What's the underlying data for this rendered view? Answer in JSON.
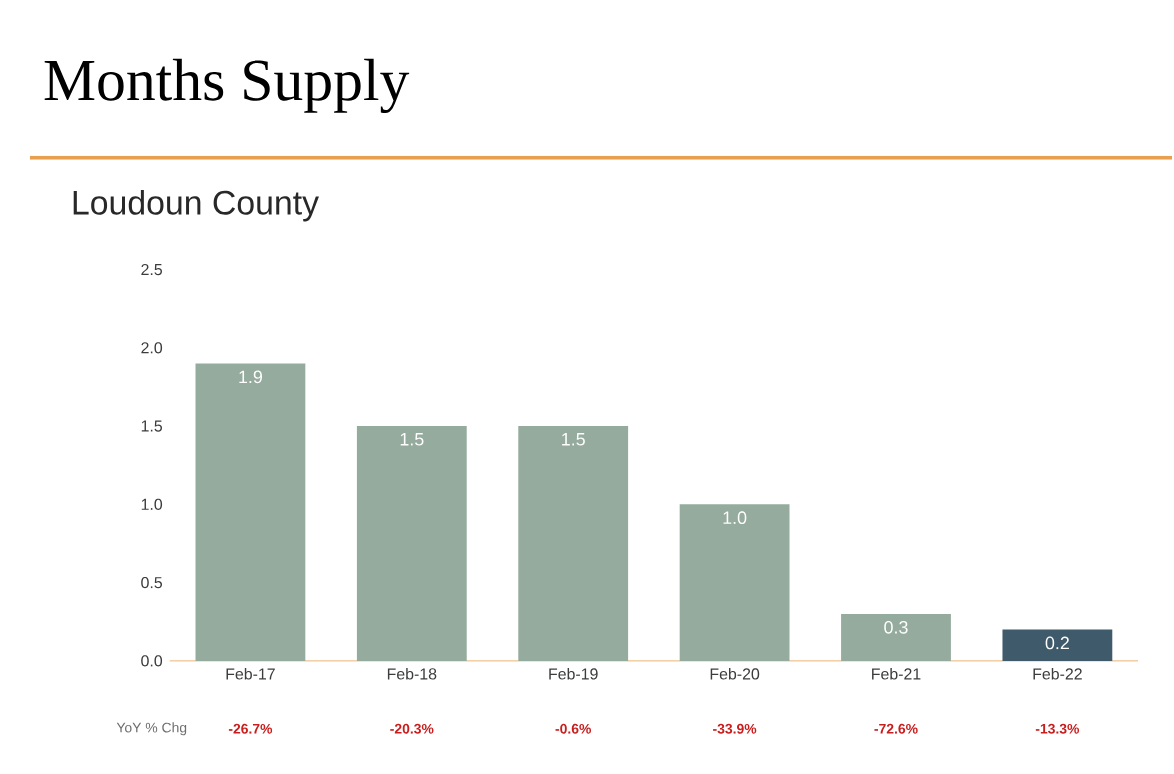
{
  "chart_data": {
    "type": "bar",
    "title": "Months Supply",
    "subtitle": "Loudoun County",
    "categories": [
      "Feb-17",
      "Feb-18",
      "Feb-19",
      "Feb-20",
      "Feb-21",
      "Feb-22"
    ],
    "values": [
      1.9,
      1.5,
      1.5,
      1.0,
      0.3,
      0.2
    ],
    "colors": [
      "#95ab9d",
      "#95ab9d",
      "#95ab9d",
      "#95ab9d",
      "#95ab9d",
      "#3f5a6a"
    ],
    "ylim": [
      0,
      2.5
    ],
    "yticks": [
      {
        "value": 0,
        "label": "0.0"
      },
      {
        "value": 0.5,
        "label": "0.5"
      },
      {
        "value": 1,
        "label": "1.0"
      },
      {
        "value": 1.5,
        "label": "1.5"
      },
      {
        "value": 2,
        "label": "2.0"
      },
      {
        "value": 2.5,
        "label": "2.5"
      }
    ],
    "value_labels": [
      "1.9",
      "1.5",
      "1.5",
      "1.0",
      "0.3",
      "0.2"
    ],
    "annotations": [
      "YoY % Chg",
      "-26.7%",
      "-20.3%",
      "-0.6%",
      "-33.9%",
      "-72.6%",
      "-13.3%"
    ]
  }
}
